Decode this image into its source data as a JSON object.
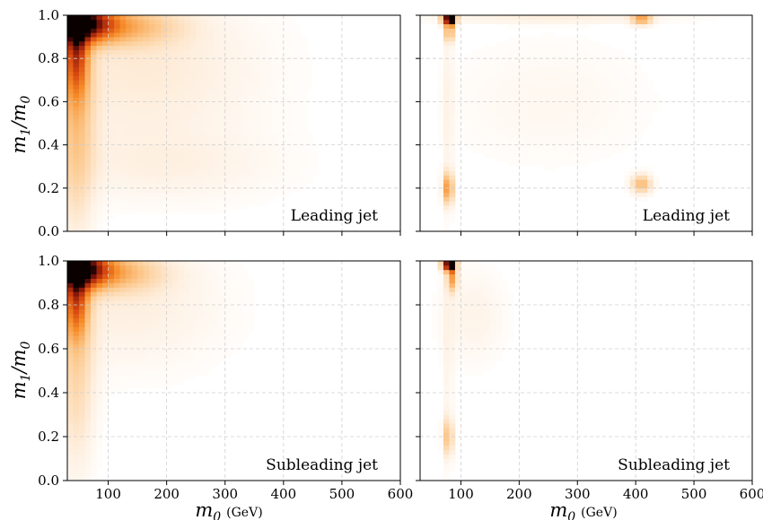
{
  "chart_data": [
    {
      "type": "heatmap",
      "panel": "top-left",
      "label": "Leading jet",
      "xlim": [
        30,
        600
      ],
      "ylim": [
        0.0,
        1.0
      ],
      "x_ticks": [
        "100",
        "200",
        "300",
        "400",
        "500",
        "600"
      ],
      "y_ticks": [
        "0.0",
        "0.2",
        "0.4",
        "0.6",
        "0.8",
        "1.0"
      ],
      "ylabel": "m1/m0",
      "xlabel": "",
      "grid": true,
      "hotspots": [
        {
          "x": 35,
          "y": 0.99,
          "intensity": 1.0,
          "sx": 12,
          "sy": 0.03
        },
        {
          "x": 55,
          "y": 0.97,
          "intensity": 0.75,
          "sx": 35,
          "sy": 0.06
        },
        {
          "x": 45,
          "y": 0.85,
          "intensity": 0.55,
          "sx": 14,
          "sy": 0.15
        },
        {
          "x": 110,
          "y": 0.95,
          "intensity": 0.3,
          "sx": 70,
          "sy": 0.06
        },
        {
          "x": 45,
          "y": 0.5,
          "intensity": 0.22,
          "sx": 22,
          "sy": 0.35
        },
        {
          "x": 160,
          "y": 0.75,
          "intensity": 0.1,
          "sx": 140,
          "sy": 0.25
        },
        {
          "x": 200,
          "y": 0.3,
          "intensity": 0.06,
          "sx": 140,
          "sy": 0.12
        }
      ]
    },
    {
      "type": "heatmap",
      "panel": "top-right",
      "label": "Leading jet",
      "xlim": [
        30,
        600
      ],
      "ylim": [
        0.0,
        1.0
      ],
      "x_ticks": [
        "100",
        "200",
        "300",
        "400",
        "500",
        "600"
      ],
      "y_ticks": [],
      "grid": true,
      "hotspots": [
        {
          "x": 85,
          "y": 0.985,
          "intensity": 1.0,
          "sx": 5,
          "sy": 0.02
        },
        {
          "x": 75,
          "y": 0.985,
          "intensity": 0.7,
          "sx": 6,
          "sy": 0.02
        },
        {
          "x": 410,
          "y": 0.985,
          "intensity": 0.35,
          "sx": 12,
          "sy": 0.02
        },
        {
          "x": 80,
          "y": 0.92,
          "intensity": 0.35,
          "sx": 5,
          "sy": 0.03
        },
        {
          "x": 78,
          "y": 0.2,
          "intensity": 0.4,
          "sx": 6,
          "sy": 0.05
        },
        {
          "x": 78,
          "y": 0.55,
          "intensity": 0.06,
          "sx": 6,
          "sy": 0.35
        },
        {
          "x": 410,
          "y": 0.22,
          "intensity": 0.3,
          "sx": 12,
          "sy": 0.03
        },
        {
          "x": 250,
          "y": 0.6,
          "intensity": 0.04,
          "sx": 120,
          "sy": 0.2
        },
        {
          "x": 250,
          "y": 0.985,
          "intensity": 0.08,
          "sx": 150,
          "sy": 0.015
        }
      ]
    },
    {
      "type": "heatmap",
      "panel": "bottom-left",
      "label": "Subleading jet",
      "xlim": [
        30,
        600
      ],
      "ylim": [
        0.0,
        1.0
      ],
      "x_ticks": [
        "100",
        "200",
        "300",
        "400",
        "500",
        "600"
      ],
      "y_ticks": [
        "0.0",
        "0.2",
        "0.4",
        "0.6",
        "0.8",
        "1.0"
      ],
      "ylabel": "m1/m0",
      "xlabel": "m0 (GeV)",
      "grid": true,
      "hotspots": [
        {
          "x": 35,
          "y": 0.99,
          "intensity": 1.0,
          "sx": 12,
          "sy": 0.03
        },
        {
          "x": 55,
          "y": 0.97,
          "intensity": 0.75,
          "sx": 30,
          "sy": 0.06
        },
        {
          "x": 45,
          "y": 0.85,
          "intensity": 0.55,
          "sx": 14,
          "sy": 0.13
        },
        {
          "x": 100,
          "y": 0.95,
          "intensity": 0.3,
          "sx": 60,
          "sy": 0.06
        },
        {
          "x": 45,
          "y": 0.5,
          "intensity": 0.18,
          "sx": 22,
          "sy": 0.3
        },
        {
          "x": 140,
          "y": 0.8,
          "intensity": 0.08,
          "sx": 110,
          "sy": 0.2
        }
      ]
    },
    {
      "type": "heatmap",
      "panel": "bottom-right",
      "label": "Subleading jet",
      "xlim": [
        30,
        600
      ],
      "ylim": [
        0.0,
        1.0
      ],
      "x_ticks": [
        "100",
        "200",
        "300",
        "400",
        "500",
        "600"
      ],
      "y_ticks": [],
      "xlabel": "m0 (GeV)",
      "grid": true,
      "hotspots": [
        {
          "x": 85,
          "y": 0.985,
          "intensity": 1.0,
          "sx": 5,
          "sy": 0.02
        },
        {
          "x": 75,
          "y": 0.985,
          "intensity": 0.7,
          "sx": 6,
          "sy": 0.02
        },
        {
          "x": 85,
          "y": 0.92,
          "intensity": 0.35,
          "sx": 6,
          "sy": 0.04
        },
        {
          "x": 78,
          "y": 0.2,
          "intensity": 0.25,
          "sx": 6,
          "sy": 0.06
        },
        {
          "x": 78,
          "y": 0.55,
          "intensity": 0.05,
          "sx": 6,
          "sy": 0.35
        },
        {
          "x": 120,
          "y": 0.75,
          "intensity": 0.06,
          "sx": 40,
          "sy": 0.15
        }
      ]
    }
  ],
  "labels": {
    "ylabel_main": "m",
    "ylabel_sub1": "1",
    "ylabel_slash": "/m",
    "ylabel_sub0": "0",
    "xlabel_main": "m",
    "xlabel_sub": "0",
    "xlabel_unit": "(GeV)"
  }
}
